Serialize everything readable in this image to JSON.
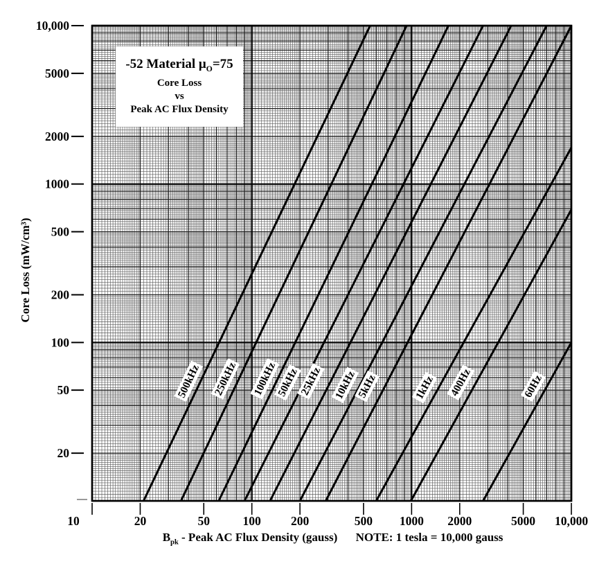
{
  "title_box": {
    "line1_prefix": "-52 Material ",
    "line1_mu": "μ",
    "line1_sub": "O",
    "line1_suffix": "=75",
    "line2": "Core Loss",
    "line3": "vs",
    "line4": "Peak AC Flux Density"
  },
  "y_axis": {
    "title": "Core Loss (mW/cm³)",
    "ticks": [
      {
        "value": 10000,
        "label": "10,000"
      },
      {
        "value": 5000,
        "label": "5000"
      },
      {
        "value": 2000,
        "label": "2000"
      },
      {
        "value": 1000,
        "label": "1000"
      },
      {
        "value": 500,
        "label": "500"
      },
      {
        "value": 200,
        "label": "200"
      },
      {
        "value": 100,
        "label": "100"
      },
      {
        "value": 50,
        "label": "50"
      },
      {
        "value": 20,
        "label": "20"
      }
    ]
  },
  "x_axis": {
    "title_b": "B",
    "title_sub": "pk",
    "title_rest": " - Peak AC Flux Density (gauss)",
    "ticks": [
      {
        "value": 20,
        "label": "20"
      },
      {
        "value": 50,
        "label": "50"
      },
      {
        "value": 100,
        "label": "100"
      },
      {
        "value": 200,
        "label": "200"
      },
      {
        "value": 500,
        "label": "500"
      },
      {
        "value": 1000,
        "label": "1000"
      },
      {
        "value": 2000,
        "label": "2000"
      },
      {
        "value": 5000,
        "label": "5000"
      },
      {
        "value": 10000,
        "label": "10,000"
      }
    ]
  },
  "corner_label": "10",
  "note": "NOTE: 1 tesla = 10,000 gauss",
  "colors": {
    "line": "#000000",
    "grid_minor": "#5c5c5c",
    "grid_mid": "#1c1c1c",
    "grid_major": "#000000",
    "frame": "#000000",
    "background": "#ffffff",
    "corner_dash": "#999999"
  },
  "chart_data": {
    "type": "line",
    "title": "-52 Material μO=75 Core Loss vs Peak AC Flux Density",
    "xlabel": "Bpk - Peak AC Flux Density (gauss)",
    "ylabel": "Core Loss (mW/cm³)",
    "note": "NOTE: 1 tesla = 10,000 gauss",
    "x_scale": "log",
    "y_scale": "log",
    "xlim": [
      10,
      10000
    ],
    "ylim": [
      10,
      10000
    ],
    "grid": "full-log 3x3 decades",
    "legend_position": "labels-on-lines",
    "series": [
      {
        "name": "500kHz",
        "points": [
          [
            21,
            10
          ],
          [
            550,
            10000
          ]
        ],
        "label_at": [
          40,
          57
        ]
      },
      {
        "name": "250kHz",
        "points": [
          [
            36,
            10
          ],
          [
            930,
            10000
          ]
        ],
        "label_at": [
          68,
          59
        ]
      },
      {
        "name": "100kHz",
        "points": [
          [
            62,
            10
          ],
          [
            1700,
            10000
          ]
        ],
        "label_at": [
          120,
          59
        ]
      },
      {
        "name": "50kHz",
        "points": [
          [
            90,
            10
          ],
          [
            2800,
            10000
          ]
        ],
        "label_at": [
          167,
          56
        ]
      },
      {
        "name": "25kHz",
        "points": [
          [
            130,
            10
          ],
          [
            4200,
            10000
          ]
        ],
        "label_at": [
          233,
          57
        ]
      },
      {
        "name": "10kHz",
        "points": [
          [
            200,
            10
          ],
          [
            7000,
            10000
          ]
        ],
        "label_at": [
          382,
          54
        ]
      },
      {
        "name": "5kHz",
        "points": [
          [
            290,
            10
          ],
          [
            10000,
            10000
          ]
        ],
        "label_at": [
          524,
          53
        ]
      },
      {
        "name": "1kHz",
        "points": [
          [
            600,
            10
          ],
          [
            10000,
            1700
          ]
        ],
        "label_at": [
          1200,
          52
        ]
      },
      {
        "name": "400Hz",
        "points": [
          [
            990,
            10
          ],
          [
            10000,
            690
          ]
        ],
        "label_at": [
          2020,
          56
        ]
      },
      {
        "name": "60Hz",
        "points": [
          [
            2800,
            10
          ],
          [
            10000,
            100
          ]
        ],
        "label_at": [
          5750,
          53
        ]
      }
    ]
  }
}
